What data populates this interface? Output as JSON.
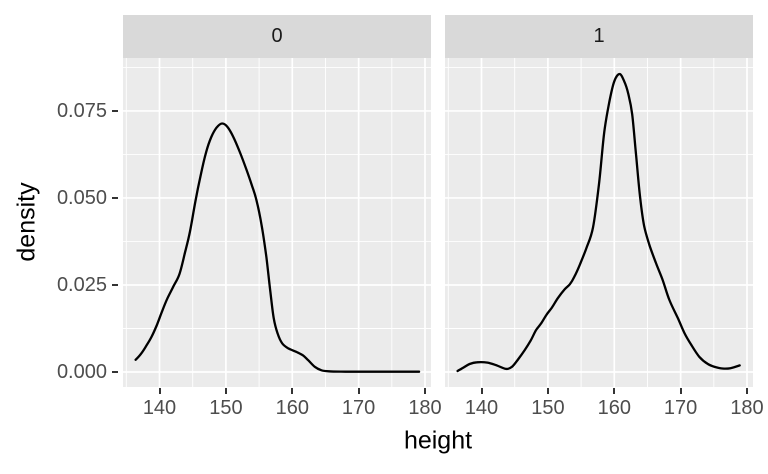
{
  "chart_data": {
    "type": "line",
    "title": "",
    "xlabel": "height",
    "ylabel": "density",
    "x_ticks": [
      140,
      150,
      160,
      170,
      180
    ],
    "x_minor_ticks": [
      135,
      145,
      155,
      165,
      175
    ],
    "y_ticks": [
      0,
      0.025,
      0.05,
      0.075
    ],
    "y_tick_labels": [
      "0.000",
      "0.025",
      "0.050",
      "0.075"
    ],
    "y_minor_ticks": [
      0.0125,
      0.0375,
      0.0625,
      0.0875
    ],
    "xlim": [
      134.5,
      180.9
    ],
    "ylim": [
      -0.0043,
      0.0902
    ],
    "grid": "major-and-minor",
    "legend": "none",
    "facet_labels": [
      "0",
      "1"
    ],
    "series": [
      {
        "facet": "0",
        "name": "density of height, facet 0",
        "peak": {
          "x": 149.4,
          "y": 0.0714
        },
        "points": [
          [
            136.4,
            0.0035
          ],
          [
            137.2,
            0.0052
          ],
          [
            138.0,
            0.0075
          ],
          [
            138.8,
            0.0101
          ],
          [
            139.6,
            0.0135
          ],
          [
            140.4,
            0.0175
          ],
          [
            141.2,
            0.0212
          ],
          [
            142.1,
            0.0246
          ],
          [
            143.0,
            0.0281
          ],
          [
            143.8,
            0.034
          ],
          [
            144.6,
            0.0404
          ],
          [
            145.4,
            0.049
          ],
          [
            146.2,
            0.0565
          ],
          [
            147.0,
            0.063
          ],
          [
            147.8,
            0.0675
          ],
          [
            148.6,
            0.0702
          ],
          [
            149.4,
            0.0714
          ],
          [
            150.2,
            0.0705
          ],
          [
            151.1,
            0.0676
          ],
          [
            152.1,
            0.0632
          ],
          [
            153.1,
            0.0581
          ],
          [
            153.9,
            0.0537
          ],
          [
            154.6,
            0.0494
          ],
          [
            155.4,
            0.042
          ],
          [
            156.1,
            0.033
          ],
          [
            156.7,
            0.023
          ],
          [
            157.2,
            0.0155
          ],
          [
            157.8,
            0.011
          ],
          [
            158.5,
            0.0082
          ],
          [
            159.4,
            0.0068
          ],
          [
            160.6,
            0.0058
          ],
          [
            161.6,
            0.0048
          ],
          [
            162.4,
            0.0034
          ],
          [
            163.4,
            0.0015
          ],
          [
            164.4,
            0.0005
          ],
          [
            165.5,
            0.0002
          ],
          [
            168.0,
            0.0001
          ],
          [
            171.0,
            0.0001
          ],
          [
            174.0,
            0.0001
          ],
          [
            176.5,
            0.0001
          ],
          [
            179.1,
            0.0001
          ]
        ]
      },
      {
        "facet": "1",
        "name": "density of height, facet 1",
        "peak": {
          "x": 160.8,
          "y": 0.0856
        },
        "points": [
          [
            136.4,
            0.0003
          ],
          [
            137.3,
            0.0013
          ],
          [
            138.2,
            0.0023
          ],
          [
            139.3,
            0.0028
          ],
          [
            140.9,
            0.0027
          ],
          [
            142.3,
            0.0019
          ],
          [
            143.7,
            0.0009
          ],
          [
            144.6,
            0.0015
          ],
          [
            145.5,
            0.0036
          ],
          [
            146.5,
            0.0063
          ],
          [
            147.4,
            0.009
          ],
          [
            148.2,
            0.012
          ],
          [
            149.0,
            0.014
          ],
          [
            149.8,
            0.0165
          ],
          [
            150.6,
            0.0185
          ],
          [
            151.5,
            0.0212
          ],
          [
            152.5,
            0.0237
          ],
          [
            153.3,
            0.0252
          ],
          [
            154.0,
            0.0274
          ],
          [
            154.8,
            0.0308
          ],
          [
            155.8,
            0.0356
          ],
          [
            156.8,
            0.0415
          ],
          [
            157.7,
            0.054
          ],
          [
            158.5,
            0.069
          ],
          [
            159.3,
            0.078
          ],
          [
            160.0,
            0.0835
          ],
          [
            160.8,
            0.0856
          ],
          [
            161.5,
            0.0835
          ],
          [
            162.1,
            0.08
          ],
          [
            162.7,
            0.074
          ],
          [
            163.3,
            0.062
          ],
          [
            163.9,
            0.05
          ],
          [
            164.5,
            0.042
          ],
          [
            165.3,
            0.0365
          ],
          [
            166.3,
            0.0312
          ],
          [
            167.3,
            0.0264
          ],
          [
            168.3,
            0.0207
          ],
          [
            169.6,
            0.0154
          ],
          [
            170.6,
            0.0111
          ],
          [
            171.6,
            0.0078
          ],
          [
            172.8,
            0.0044
          ],
          [
            174.1,
            0.0023
          ],
          [
            175.3,
            0.0014
          ],
          [
            176.3,
            0.001
          ],
          [
            177.5,
            0.0011
          ],
          [
            178.9,
            0.0019
          ]
        ]
      }
    ]
  },
  "colors": {
    "figure_bg": "#FFFFFF",
    "panel_bg": "#EBEBEB",
    "strip_bg": "#D9D9D9",
    "strip_text": "#1A1A1A",
    "grid": "#FFFFFF",
    "curve": "#000000",
    "tick_label": "#4D4D4D",
    "tick_mark": "#333333",
    "axis_title": "#000000"
  }
}
